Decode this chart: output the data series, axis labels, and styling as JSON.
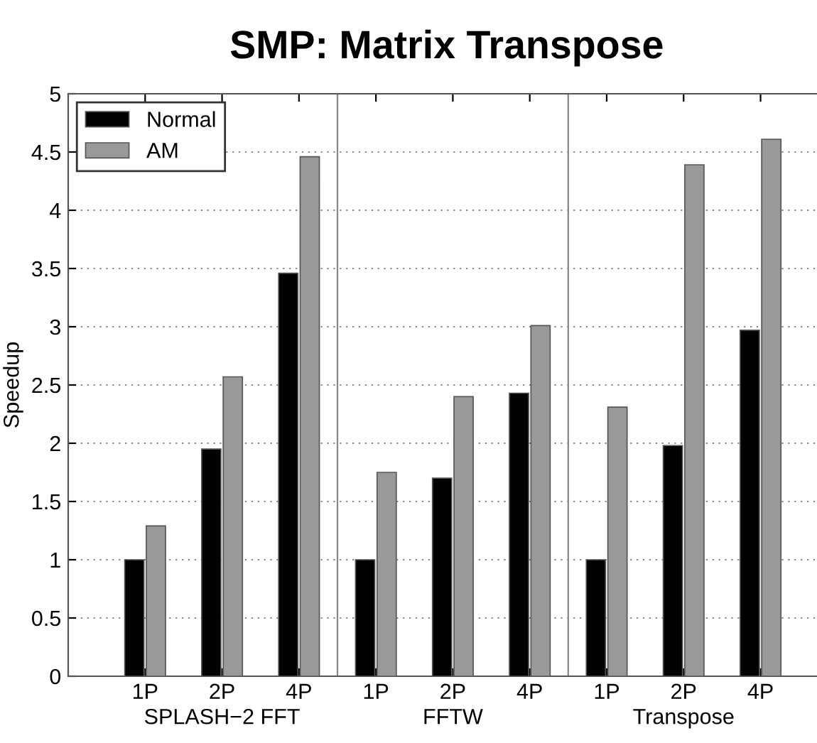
{
  "chart_data": {
    "type": "bar",
    "title": "SMP: Matrix Transpose",
    "ylabel": "Speedup",
    "categories": [
      "1P",
      "2P",
      "4P",
      "1P",
      "2P",
      "4P",
      "1P",
      "2P",
      "4P"
    ],
    "series": [
      {
        "name": "Normal",
        "color": "#000000",
        "values": [
          1,
          1.95,
          3.46,
          1,
          1.7,
          2.43,
          1,
          1.98,
          2.97
        ]
      },
      {
        "name": "AM",
        "color": "#999999",
        "values": [
          1.29,
          2.57,
          4.46,
          1.75,
          2.4,
          3.01,
          2.31,
          4.39,
          4.61
        ]
      }
    ],
    "annotations": [
      "SPLASH−2 FFT",
      "FFTW",
      "Transpose"
    ],
    "ylim": [
      0,
      5
    ],
    "yticks": [
      0,
      0.5,
      1,
      1.5,
      2,
      2.5,
      3,
      3.5,
      4,
      4.5,
      5
    ],
    "grid": "y",
    "legend": "top left"
  }
}
